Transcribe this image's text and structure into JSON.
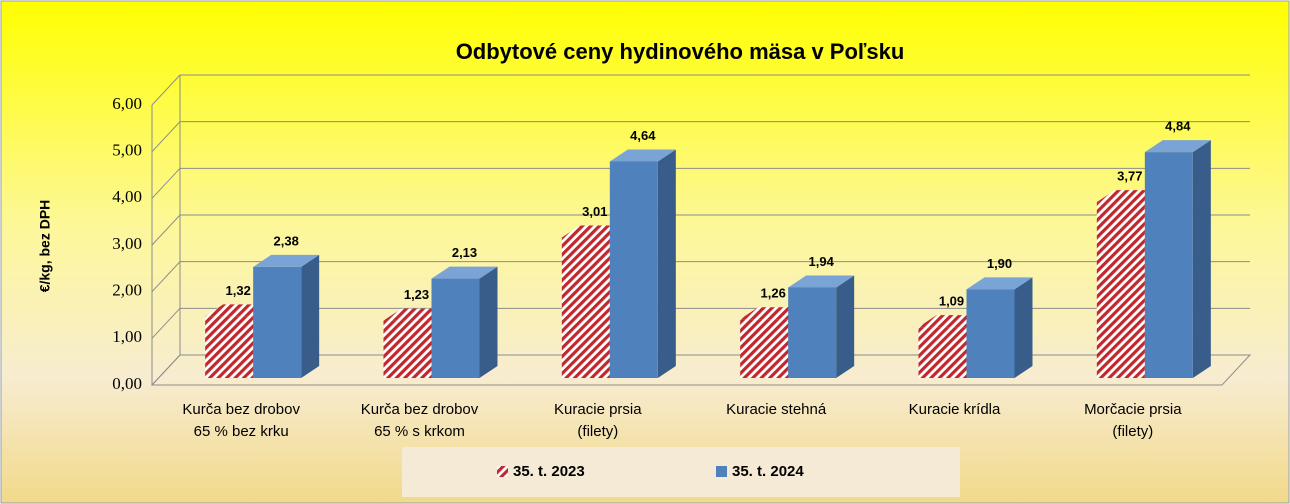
{
  "chart_data": {
    "type": "bar",
    "title": "Odbytové ceny hydinového mäsa v Poľsku",
    "y_label": "€/kg, bez DPH",
    "categories": [
      [
        "Kurča bez drobov",
        "65 % bez krku"
      ],
      [
        "Kurča bez drobov",
        "65 % s krkom"
      ],
      [
        "Kuracie prsia",
        "(filety)"
      ],
      [
        "Kuracie stehná"
      ],
      [
        "Kuracie krídla"
      ],
      [
        "Morčacie prsia",
        "(filety)"
      ]
    ],
    "series": [
      {
        "name": "35. t. 2023",
        "color": "#c0282d",
        "values": [
          1.32,
          1.23,
          3.01,
          1.26,
          1.09,
          3.77
        ],
        "value_labels": [
          "1,32",
          "1,23",
          "3,01",
          "1,26",
          "1,09",
          "3,77"
        ]
      },
      {
        "name": "35. t. 2024",
        "color": "#4f81bd",
        "values": [
          2.38,
          2.13,
          4.64,
          1.94,
          1.9,
          4.84
        ],
        "value_labels": [
          "2,38",
          "2,13",
          "4,64",
          "1,94",
          "1,90",
          "4,84"
        ]
      }
    ],
    "ylim": [
      0,
      6
    ],
    "yticks": [
      {
        "value": 0,
        "label": "0,00"
      },
      {
        "value": 1,
        "label": "1,00"
      },
      {
        "value": 2,
        "label": "2,00"
      },
      {
        "value": 3,
        "label": "3,00"
      },
      {
        "value": 4,
        "label": "4,00"
      },
      {
        "value": 5,
        "label": "5,00"
      },
      {
        "value": 6,
        "label": "6,00"
      }
    ],
    "grid": true,
    "legend": "bottom"
  }
}
